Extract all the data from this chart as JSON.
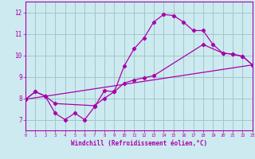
{
  "xlabel": "Windchill (Refroidissement éolien,°C)",
  "xlim": [
    0,
    23
  ],
  "ylim": [
    6.5,
    12.5
  ],
  "yticks": [
    7,
    8,
    9,
    10,
    11,
    12
  ],
  "xticks": [
    0,
    1,
    2,
    3,
    4,
    5,
    6,
    7,
    8,
    9,
    10,
    11,
    12,
    13,
    14,
    15,
    16,
    17,
    18,
    19,
    20,
    21,
    22,
    23
  ],
  "bg_color": "#cdeaf0",
  "line_color": "#aa00aa",
  "grid_color": "#9fc8c8",
  "line1_x": [
    0,
    1,
    2,
    3,
    4,
    5,
    6,
    7,
    8,
    9,
    10,
    11,
    12,
    13,
    14,
    15,
    16,
    17,
    18,
    19,
    20,
    21,
    22,
    23
  ],
  "line1_y": [
    7.95,
    8.3,
    8.1,
    7.3,
    7.0,
    7.3,
    7.0,
    7.6,
    8.35,
    8.3,
    9.5,
    10.3,
    10.8,
    11.55,
    11.9,
    11.85,
    11.55,
    11.15,
    11.15,
    10.5,
    10.1,
    10.05,
    9.95,
    9.55
  ],
  "line2_x": [
    0,
    23
  ],
  "line2_y": [
    7.95,
    9.55
  ],
  "line3_x": [
    0,
    1,
    2,
    3,
    7,
    8,
    9,
    10,
    11,
    12,
    13,
    18,
    20,
    21,
    22,
    23
  ],
  "line3_y": [
    7.95,
    8.3,
    8.1,
    7.75,
    7.65,
    8.0,
    8.3,
    8.7,
    8.85,
    8.95,
    9.05,
    10.5,
    10.1,
    10.05,
    9.95,
    9.55
  ]
}
